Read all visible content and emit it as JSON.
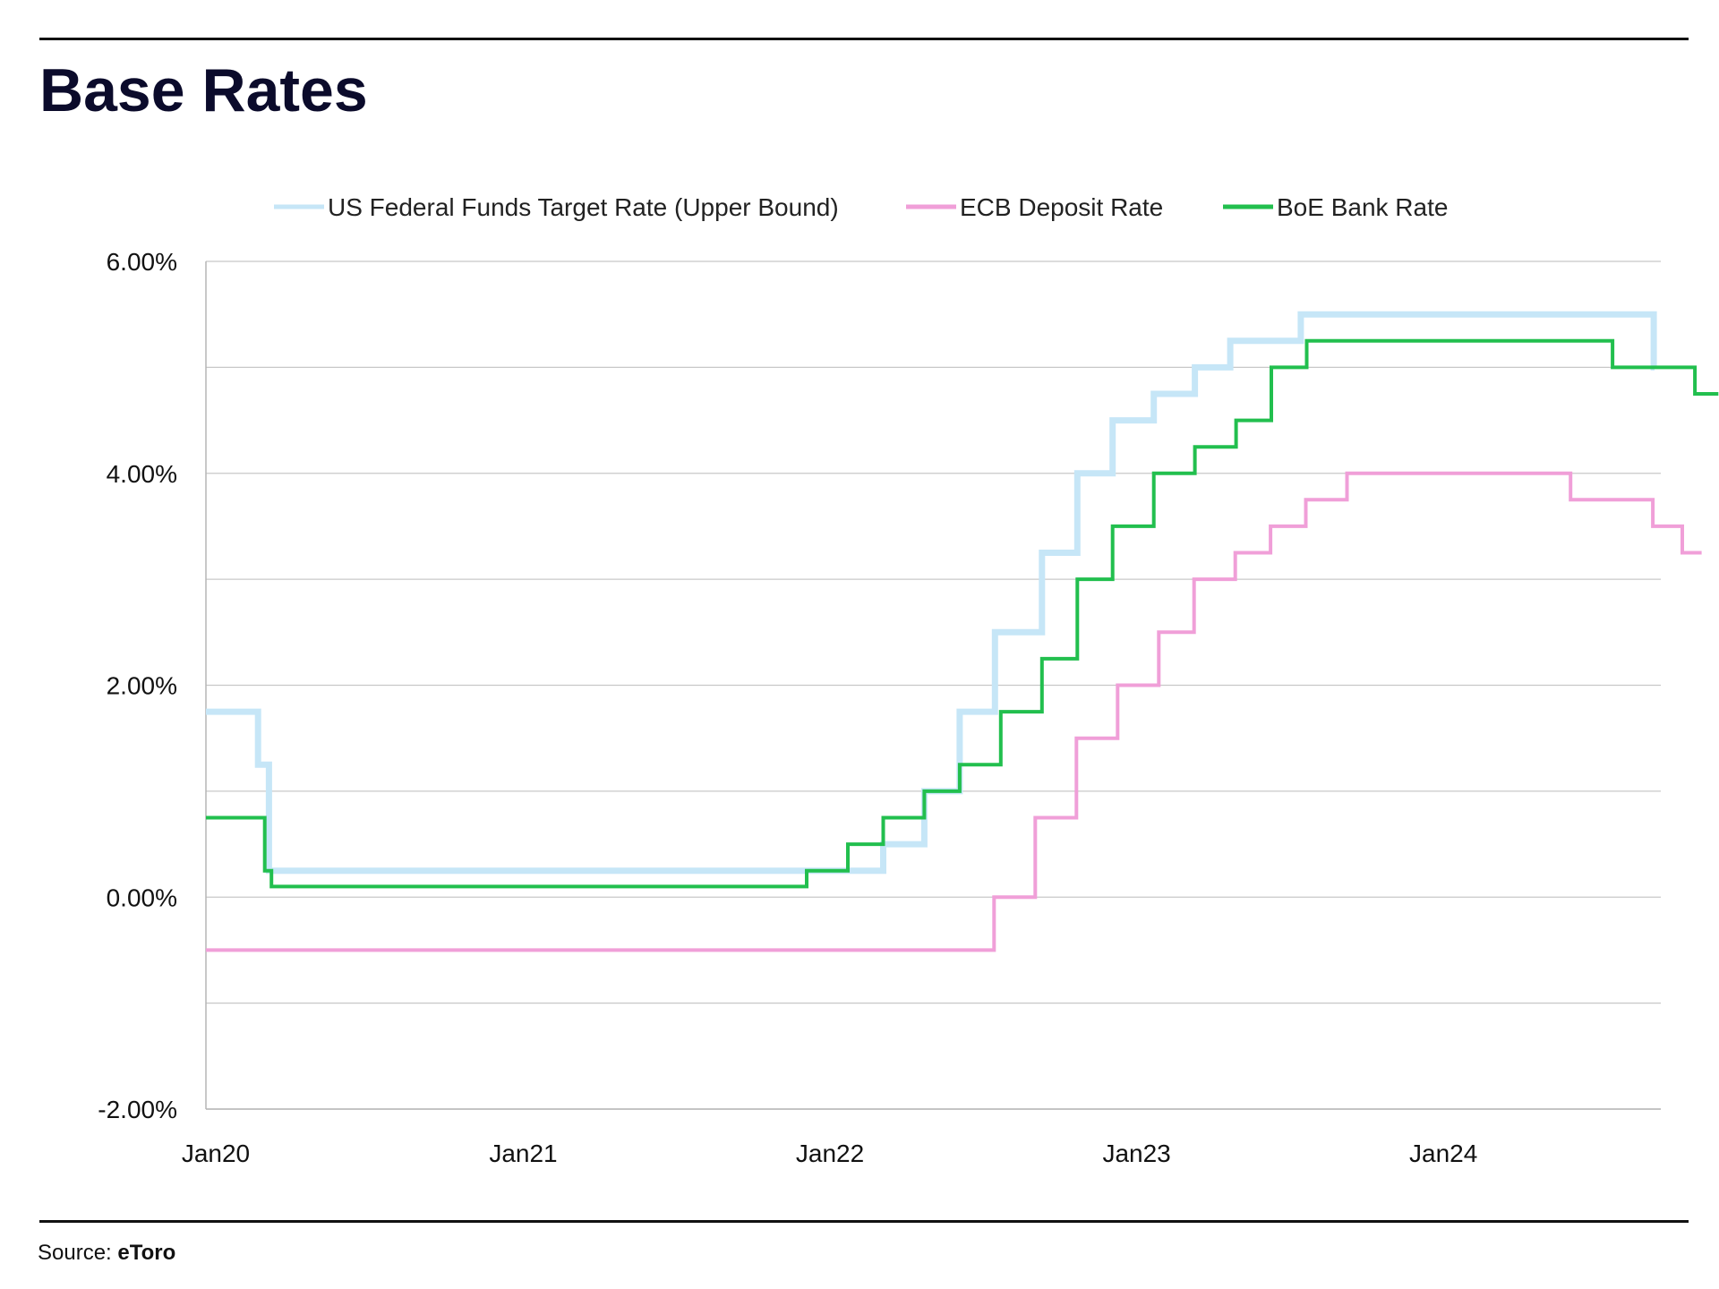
{
  "header": {
    "title": "Base Rates"
  },
  "footer": {
    "source_label": "Source:",
    "source_name": "eToro"
  },
  "chart_data": {
    "type": "line",
    "step": true,
    "title": "Base Rates",
    "xlabel": "",
    "ylabel": "",
    "ylim": [
      -2.0,
      6.0
    ],
    "xlim": [
      "2020-01-01",
      "2024-09-20"
    ],
    "grid": true,
    "legend_position": "top",
    "y_ticks": [
      {
        "value": 6.0,
        "label": "6.00%"
      },
      {
        "value": 4.0,
        "label": "4.00%"
      },
      {
        "value": 2.0,
        "label": "2.00%"
      },
      {
        "value": 0.0,
        "label": "0.00%"
      },
      {
        "value": -2.0,
        "label": "-2.00%"
      }
    ],
    "y_gridlines": [
      6,
      5,
      4,
      3,
      2,
      1,
      0,
      -1,
      -2
    ],
    "x_ticks": [
      {
        "value": "2020-01-01",
        "label": "Jan20"
      },
      {
        "value": "2021-01-01",
        "label": "Jan21"
      },
      {
        "value": "2022-01-01",
        "label": "Jan22"
      },
      {
        "value": "2023-01-01",
        "label": "Jan23"
      },
      {
        "value": "2024-01-01",
        "label": "Jan24"
      }
    ],
    "series": [
      {
        "name": "US Federal Funds Target Rate (Upper Bound)",
        "color": "#c6e6f7",
        "width": 7,
        "points": [
          [
            "2020-01-01",
            1.75
          ],
          [
            "2020-03-03",
            1.25
          ],
          [
            "2020-03-16",
            0.25
          ],
          [
            "2022-03-17",
            0.5
          ],
          [
            "2022-05-05",
            1.0
          ],
          [
            "2022-06-16",
            1.75
          ],
          [
            "2022-07-28",
            2.5
          ],
          [
            "2022-09-22",
            3.25
          ],
          [
            "2022-11-03",
            4.0
          ],
          [
            "2022-12-15",
            4.5
          ],
          [
            "2023-02-02",
            4.75
          ],
          [
            "2023-03-23",
            5.0
          ],
          [
            "2023-05-04",
            5.25
          ],
          [
            "2023-07-27",
            5.5
          ],
          [
            "2024-09-19",
            5.0
          ],
          [
            "2024-09-20",
            5.0
          ]
        ]
      },
      {
        "name": "ECB Deposit Rate",
        "color": "#f09fd8",
        "width": 4,
        "points": [
          [
            "2020-01-01",
            -0.5
          ],
          [
            "2022-07-27",
            0.0
          ],
          [
            "2022-09-14",
            0.75
          ],
          [
            "2022-11-02",
            1.5
          ],
          [
            "2022-12-21",
            2.0
          ],
          [
            "2023-02-08",
            2.5
          ],
          [
            "2023-03-22",
            3.0
          ],
          [
            "2023-05-10",
            3.25
          ],
          [
            "2023-06-21",
            3.5
          ],
          [
            "2023-08-02",
            3.75
          ],
          [
            "2023-09-20",
            4.0
          ],
          [
            "2024-06-12",
            3.75
          ],
          [
            "2024-09-18",
            3.5
          ],
          [
            "2024-10-23",
            3.25
          ],
          [
            "2024-11-15",
            3.25
          ]
        ]
      },
      {
        "name": "BoE Bank Rate",
        "color": "#22bf4e",
        "width": 4,
        "points": [
          [
            "2020-01-01",
            0.75
          ],
          [
            "2020-03-11",
            0.25
          ],
          [
            "2020-03-19",
            0.1
          ],
          [
            "2021-12-16",
            0.25
          ],
          [
            "2022-02-03",
            0.5
          ],
          [
            "2022-03-17",
            0.75
          ],
          [
            "2022-05-05",
            1.0
          ],
          [
            "2022-06-16",
            1.25
          ],
          [
            "2022-08-04",
            1.75
          ],
          [
            "2022-09-22",
            2.25
          ],
          [
            "2022-11-03",
            3.0
          ],
          [
            "2022-12-15",
            3.5
          ],
          [
            "2023-02-02",
            4.0
          ],
          [
            "2023-03-23",
            4.25
          ],
          [
            "2023-05-11",
            4.5
          ],
          [
            "2023-06-22",
            5.0
          ],
          [
            "2023-08-03",
            5.25
          ],
          [
            "2024-08-01",
            5.0
          ],
          [
            "2024-11-07",
            4.75
          ],
          [
            "2024-12-05",
            4.75
          ]
        ]
      }
    ]
  }
}
